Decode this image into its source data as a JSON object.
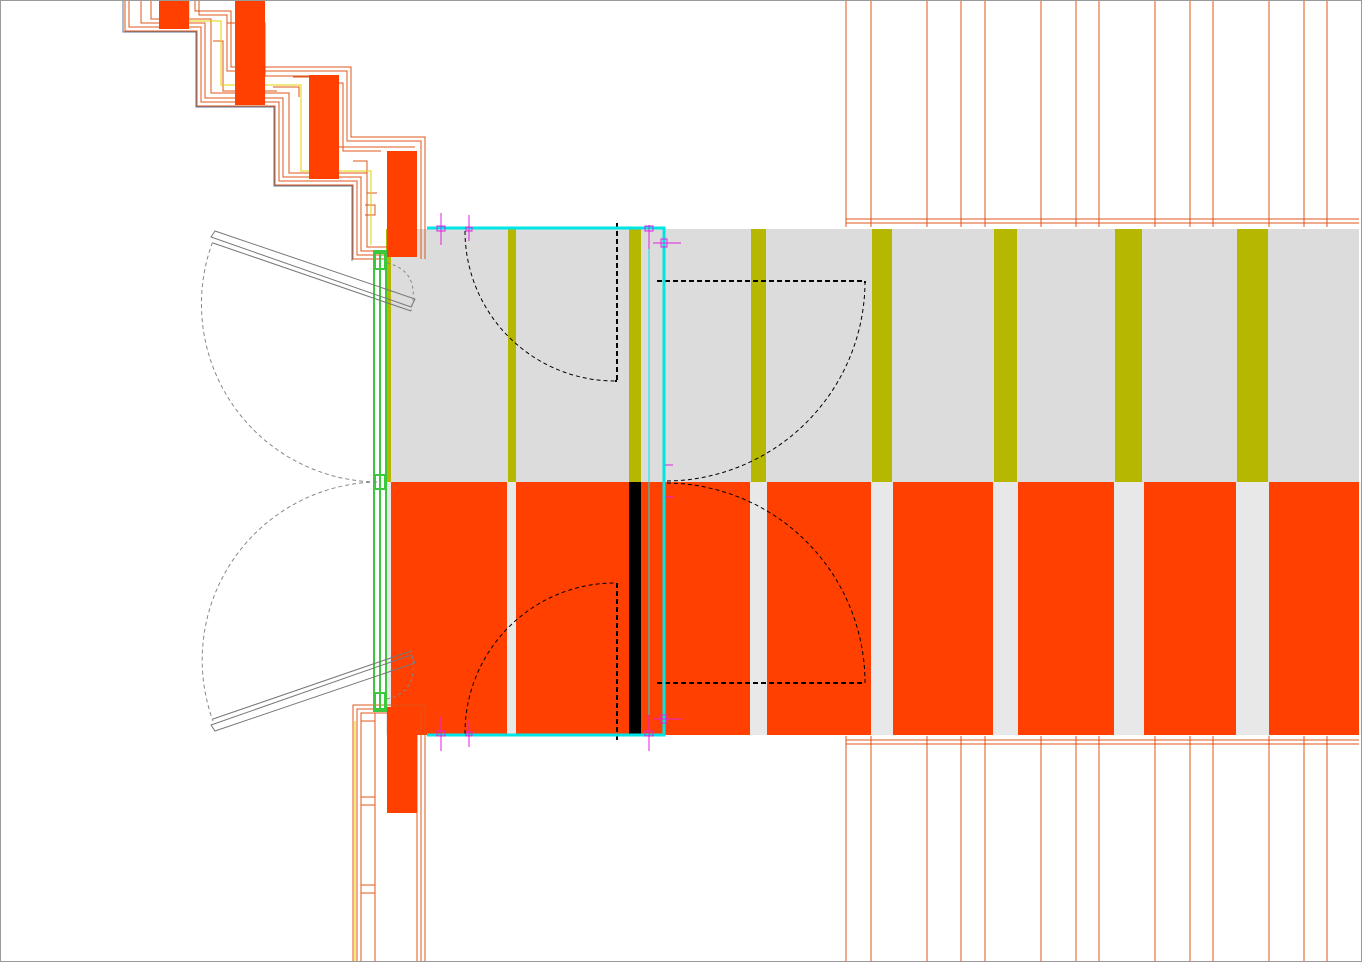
{
  "app": {
    "view": "floor-plan-viewport"
  },
  "colors": {
    "background": "#ffffff",
    "frame": "#9a9a9a",
    "wall_fill": "#ff4000",
    "wall_line": "#e0541a",
    "floor_grey": "#dcdcdc",
    "floor_light": "#e8e8e8",
    "olive_strip": "#b5b700",
    "glass_green": "#3cc83c",
    "selection_cyan": "#00e5e5",
    "grip_magenta": "#e020e0",
    "door_swing": "#444444",
    "door_swing_light": "#888888",
    "yellow_line": "#e6d200"
  },
  "elements": {
    "wall_layers": "stepped-wall-layers",
    "floor_zone": "floor-zone",
    "door_leaves": "door-leaves",
    "selection": "selected-door-frame"
  }
}
